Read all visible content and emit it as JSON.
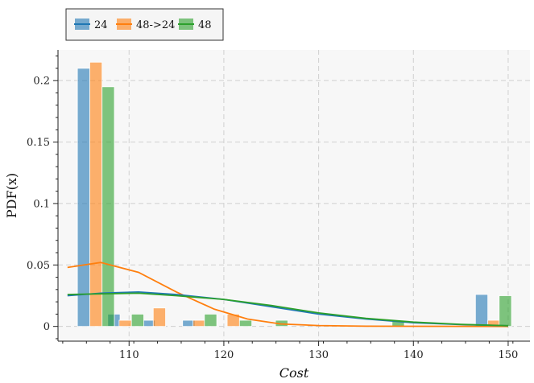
{
  "chart_data": {
    "type": "bar",
    "xlabel": "Cost",
    "ylabel": "PDF(x)",
    "xlim": [
      102.5,
      152.3
    ],
    "ylim": [
      -0.012,
      0.225
    ],
    "xticks": [
      110,
      120,
      130,
      140,
      150
    ],
    "yticks": [
      0,
      0.05,
      0.1,
      0.15,
      0.2
    ],
    "xtick_labels": [
      "110",
      "120",
      "130",
      "140",
      "150"
    ],
    "ytick_labels": [
      "0",
      "0.05",
      "0.1",
      "0.15",
      "0.2"
    ],
    "grid": true,
    "legend_position": "top-left, outside plot",
    "bin_width": 1.3,
    "series": [
      {
        "name": "24",
        "color": "#1f77b4",
        "bars": [
          {
            "x": 105.2,
            "y": 0.21
          },
          {
            "x": 108.4,
            "y": 0.01
          },
          {
            "x": 112.1,
            "y": 0.005
          },
          {
            "x": 116.3,
            "y": 0.005
          },
          {
            "x": 147.2,
            "y": 0.026
          }
        ],
        "curve": [
          [
            103.5,
            0.025
          ],
          [
            107,
            0.027
          ],
          [
            111,
            0.028
          ],
          [
            115,
            0.026
          ],
          [
            120,
            0.022
          ],
          [
            125,
            0.016
          ],
          [
            130,
            0.01
          ],
          [
            135,
            0.006
          ],
          [
            140,
            0.003
          ],
          [
            145,
            0.0015
          ],
          [
            150,
            0.0005
          ]
        ]
      },
      {
        "name": "48->24",
        "color": "#ff7f0e",
        "bars": [
          {
            "x": 106.5,
            "y": 0.215
          },
          {
            "x": 109.6,
            "y": 0.005
          },
          {
            "x": 113.2,
            "y": 0.015
          },
          {
            "x": 117.4,
            "y": 0.005
          },
          {
            "x": 121.0,
            "y": 0.01
          },
          {
            "x": 148.5,
            "y": 0.005
          }
        ],
        "curve": [
          [
            103.5,
            0.048
          ],
          [
            107,
            0.052
          ],
          [
            111,
            0.044
          ],
          [
            115,
            0.028
          ],
          [
            119,
            0.014
          ],
          [
            122.5,
            0.006
          ],
          [
            126,
            0.002
          ],
          [
            130,
            0.0007
          ],
          [
            135,
            0.0002
          ],
          [
            140,
            0.0001
          ],
          [
            150,
            0.0
          ]
        ]
      },
      {
        "name": "48",
        "color": "#2ca02c",
        "bars": [
          {
            "x": 107.8,
            "y": 0.195
          },
          {
            "x": 110.9,
            "y": 0.01
          },
          {
            "x": 118.6,
            "y": 0.01
          },
          {
            "x": 122.3,
            "y": 0.005
          },
          {
            "x": 126.1,
            "y": 0.005
          },
          {
            "x": 138.4,
            "y": 0.005
          },
          {
            "x": 149.7,
            "y": 0.025
          }
        ],
        "curve": [
          [
            103.5,
            0.026
          ],
          [
            107,
            0.0265
          ],
          [
            111,
            0.027
          ],
          [
            115,
            0.025
          ],
          [
            120,
            0.022
          ],
          [
            125,
            0.017
          ],
          [
            130,
            0.011
          ],
          [
            135,
            0.0065
          ],
          [
            140,
            0.0035
          ],
          [
            145,
            0.0017
          ],
          [
            150,
            0.0006
          ]
        ]
      }
    ]
  }
}
